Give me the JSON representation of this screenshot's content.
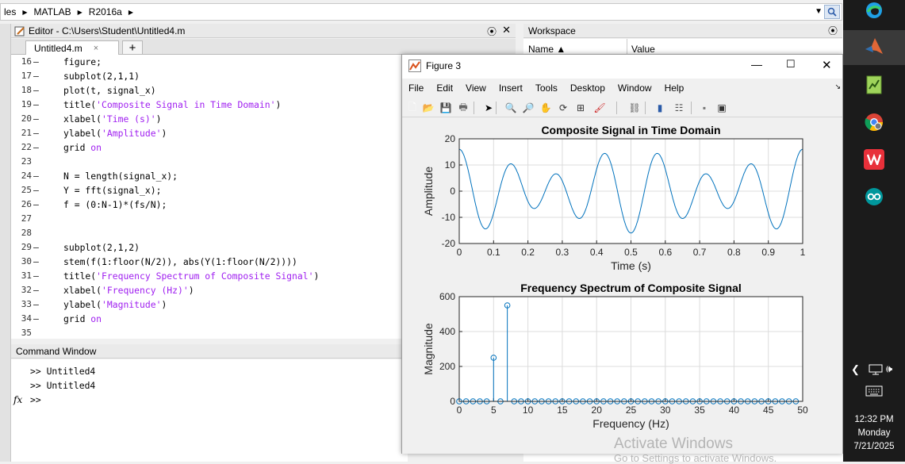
{
  "address_bar": {
    "crumbs": [
      "les",
      "MATLAB",
      "R2016a"
    ]
  },
  "editor": {
    "title": "Editor - C:\\Users\\Student\\Untitled4.m",
    "tab_label": "Untitled4.m",
    "tab_close": "×",
    "add_tab": "+",
    "lines": [
      {
        "n": "16",
        "parts": [
          [
            "figure;",
            "n"
          ]
        ]
      },
      {
        "n": "17",
        "parts": [
          [
            "subplot(2,1,1)",
            "n"
          ]
        ]
      },
      {
        "n": "18",
        "parts": [
          [
            "plot(t, signal_x)",
            "n"
          ]
        ]
      },
      {
        "n": "19",
        "parts": [
          [
            "title(",
            "n"
          ],
          [
            "'Composite Signal in Time Domain'",
            "s"
          ],
          [
            ")",
            "n"
          ]
        ]
      },
      {
        "n": "20",
        "parts": [
          [
            "xlabel(",
            "n"
          ],
          [
            "'Time (s)'",
            "s"
          ],
          [
            ")",
            "n"
          ]
        ]
      },
      {
        "n": "21",
        "parts": [
          [
            "ylabel(",
            "n"
          ],
          [
            "'Amplitude'",
            "s"
          ],
          [
            ")",
            "n"
          ]
        ]
      },
      {
        "n": "22",
        "parts": [
          [
            "grid ",
            "n"
          ],
          [
            "on",
            "s"
          ]
        ]
      },
      {
        "n": "23",
        "parts": []
      },
      {
        "n": "24",
        "parts": [
          [
            "N = length(signal_x);",
            "n"
          ]
        ]
      },
      {
        "n": "25",
        "parts": [
          [
            "Y = fft(signal_x);",
            "n"
          ]
        ]
      },
      {
        "n": "26",
        "parts": [
          [
            "f = (0:N-1)*(fs/N);",
            "n"
          ]
        ]
      },
      {
        "n": "27",
        "parts": []
      },
      {
        "n": "28",
        "parts": []
      },
      {
        "n": "29",
        "parts": [
          [
            "subplot(2,1,2)",
            "n"
          ]
        ]
      },
      {
        "n": "30",
        "parts": [
          [
            "stem(f(1:floor(N/2)), abs(Y(1:floor(N/2))))",
            "n"
          ]
        ]
      },
      {
        "n": "31",
        "parts": [
          [
            "title(",
            "n"
          ],
          [
            "'Frequency Spectrum of Composite Signal'",
            "s"
          ],
          [
            ")",
            "n"
          ]
        ]
      },
      {
        "n": "32",
        "parts": [
          [
            "xlabel(",
            "n"
          ],
          [
            "'Frequency (Hz)'",
            "s"
          ],
          [
            ")",
            "n"
          ]
        ]
      },
      {
        "n": "33",
        "parts": [
          [
            "ylabel(",
            "n"
          ],
          [
            "'Magnitude'",
            "s"
          ],
          [
            ")",
            "n"
          ]
        ]
      },
      {
        "n": "34",
        "parts": [
          [
            "grid ",
            "n"
          ],
          [
            "on",
            "s"
          ]
        ]
      },
      {
        "n": "35",
        "parts": []
      }
    ],
    "dashes": [
      "16",
      "17",
      "18",
      "19",
      "20",
      "21",
      "22",
      "24",
      "25",
      "26",
      "29",
      "30",
      "31",
      "32",
      "33",
      "34"
    ]
  },
  "command_window": {
    "title": "Command Window",
    "lines": [
      ">> Untitled4",
      ">> Untitled4",
      ">>"
    ],
    "fx": "fx"
  },
  "workspace": {
    "title": "Workspace",
    "col_name": "Name ▲",
    "col_value": "Value"
  },
  "figure": {
    "title": "Figure 3",
    "menu": [
      "File",
      "Edit",
      "View",
      "Insert",
      "Tools",
      "Desktop",
      "Window",
      "Help"
    ],
    "toolbar_icons": [
      "new-figure-icon",
      "open-icon",
      "save-icon",
      "print-icon",
      "pointer-icon",
      "zoom-in-icon",
      "zoom-out-icon",
      "pan-icon",
      "rotate-icon",
      "data-cursor-icon",
      "brush-icon",
      "link-icon",
      "colorbar-icon",
      "legend-icon",
      "hide-plot-tools-icon",
      "show-plot-tools-icon"
    ]
  },
  "chart_data": [
    {
      "type": "line",
      "title": "Composite Signal in Time Domain",
      "xlabel": "Time (s)",
      "ylabel": "Amplitude",
      "xlim": [
        0,
        1
      ],
      "ylim": [
        -20,
        20
      ],
      "xticks": [
        "0",
        "0.1",
        "0.2",
        "0.3",
        "0.4",
        "0.5",
        "0.6",
        "0.7",
        "0.8",
        "0.9",
        "1"
      ],
      "yticks": [
        "-20",
        "-10",
        "0",
        "10",
        "20"
      ],
      "grid": true,
      "color": "#0072bd",
      "components": [
        {
          "freq_hz": 5,
          "amp": 5
        },
        {
          "freq_hz": 7,
          "amp": 11
        }
      ],
      "offset": 0
    },
    {
      "type": "stem",
      "title": "Frequency Spectrum of Composite Signal",
      "xlabel": "Frequency (Hz)",
      "ylabel": "Magnitude",
      "xlim": [
        0,
        50
      ],
      "ylim": [
        0,
        600
      ],
      "xticks": [
        "0",
        "5",
        "10",
        "15",
        "20",
        "25",
        "30",
        "35",
        "40",
        "45",
        "50"
      ],
      "yticks": [
        "0",
        "200",
        "400",
        "600"
      ],
      "grid": true,
      "color": "#0072bd",
      "x": [
        0,
        1,
        2,
        3,
        4,
        5,
        6,
        7,
        8,
        9,
        10,
        11,
        12,
        13,
        14,
        15,
        16,
        17,
        18,
        19,
        20,
        21,
        22,
        23,
        24,
        25,
        26,
        27,
        28,
        29,
        30,
        31,
        32,
        33,
        34,
        35,
        36,
        37,
        38,
        39,
        40,
        41,
        42,
        43,
        44,
        45,
        46,
        47,
        48,
        49
      ],
      "y": [
        0,
        0,
        0,
        0,
        0,
        250,
        0,
        550,
        0,
        0,
        0,
        0,
        0,
        0,
        0,
        0,
        0,
        0,
        0,
        0,
        0,
        0,
        0,
        0,
        0,
        0,
        0,
        0,
        0,
        0,
        0,
        0,
        0,
        0,
        0,
        0,
        0,
        0,
        0,
        0,
        0,
        0,
        0,
        0,
        0,
        0,
        0,
        0,
        0,
        0
      ]
    }
  ],
  "taskbar": {
    "time": "12:32 PM",
    "day": "Monday",
    "date": "7/21/2025"
  },
  "watermark": {
    "line1": "Activate Windows",
    "line2": "Go to Settings to activate Windows."
  }
}
